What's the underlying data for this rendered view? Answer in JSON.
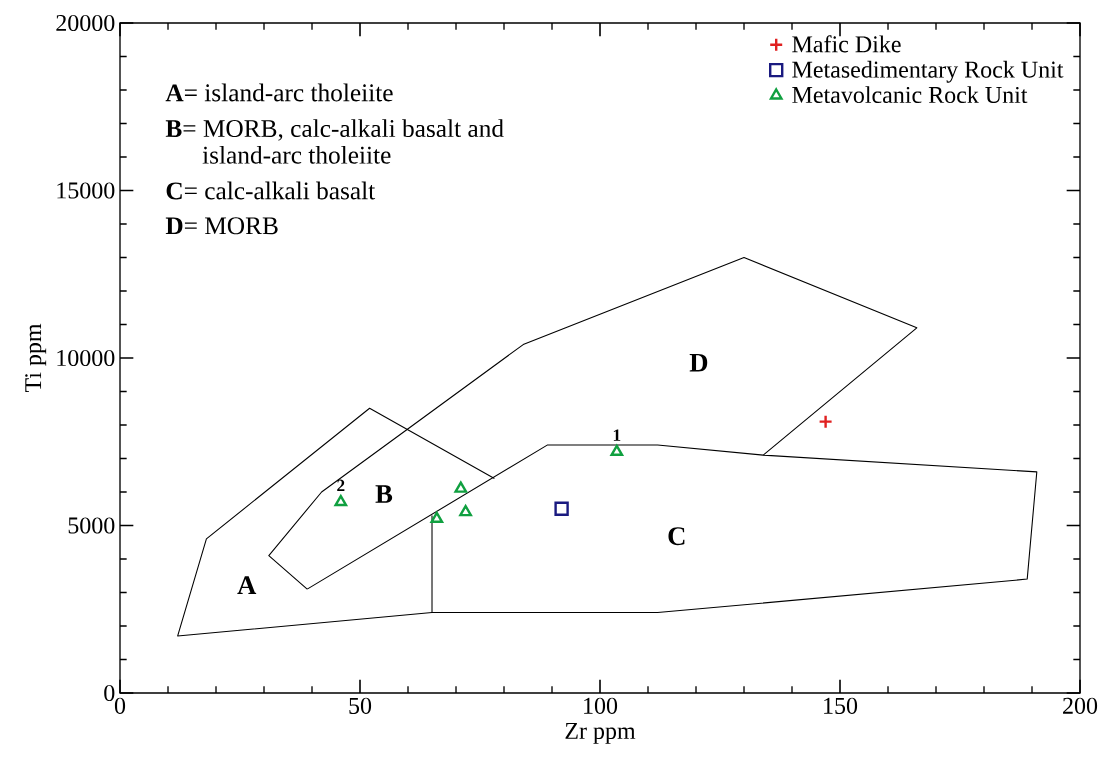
{
  "chart_data": {
    "type": "scatter",
    "xlabel": "Zr ppm",
    "ylabel": "Ti ppm",
    "xlim": [
      0,
      200
    ],
    "ylim": [
      0,
      20000
    ],
    "xticks": [
      0,
      50,
      100,
      150,
      200
    ],
    "yticks": [
      0,
      5000,
      10000,
      15000,
      20000
    ],
    "legend": "top right",
    "series": [
      {
        "name": "Mafic Dike",
        "color": "#e02020",
        "marker": "cross",
        "x": [
          147
        ],
        "values": [
          8100
        ]
      },
      {
        "name": "Metasedimentary Rock Unit",
        "color": "#1a1a80",
        "marker": "square",
        "x": [
          92
        ],
        "values": [
          5500
        ]
      },
      {
        "name": "Metavolcanic Rock Unit",
        "color": "#10a040",
        "marker": "triangle",
        "x": [
          46,
          66,
          71,
          72,
          103.5
        ],
        "values": [
          5700,
          5200,
          6100,
          5400,
          7200
        ]
      },
      {
        "type": "line",
        "color": "#000000",
        "marker": "none",
        "x": [
          65,
          12,
          18,
          52,
          78
        ],
        "values": [
          2400,
          1700,
          4600,
          8500,
          6400
        ]
      },
      {
        "type": "line",
        "color": "#000000",
        "marker": "none",
        "x": [
          39,
          89,
          112,
          134,
          191,
          189,
          112,
          65,
          65
        ],
        "values": [
          3100,
          7400,
          7400,
          7100,
          6600,
          3400,
          2400,
          2400,
          5300
        ]
      },
      {
        "type": "line",
        "color": "#000000",
        "marker": "none",
        "x": [
          39,
          31,
          42,
          84,
          130,
          166,
          134
        ],
        "values": [
          3100,
          4100,
          6000,
          10400,
          13000,
          10900,
          7100
        ]
      }
    ],
    "annotations": [
      "**A**= island-arc tholeiite",
      "**B**= MORB, calc-alkali basalt and island-arc tholeiite",
      "**C**= calc-alkali basalt",
      "**D**= MORB",
      "A",
      "B",
      "C",
      "D",
      {
        "text": "1",
        "x": 103.5,
        "y": 7200
      },
      {
        "text": "2",
        "x": 46,
        "y": 5700
      }
    ]
  }
}
